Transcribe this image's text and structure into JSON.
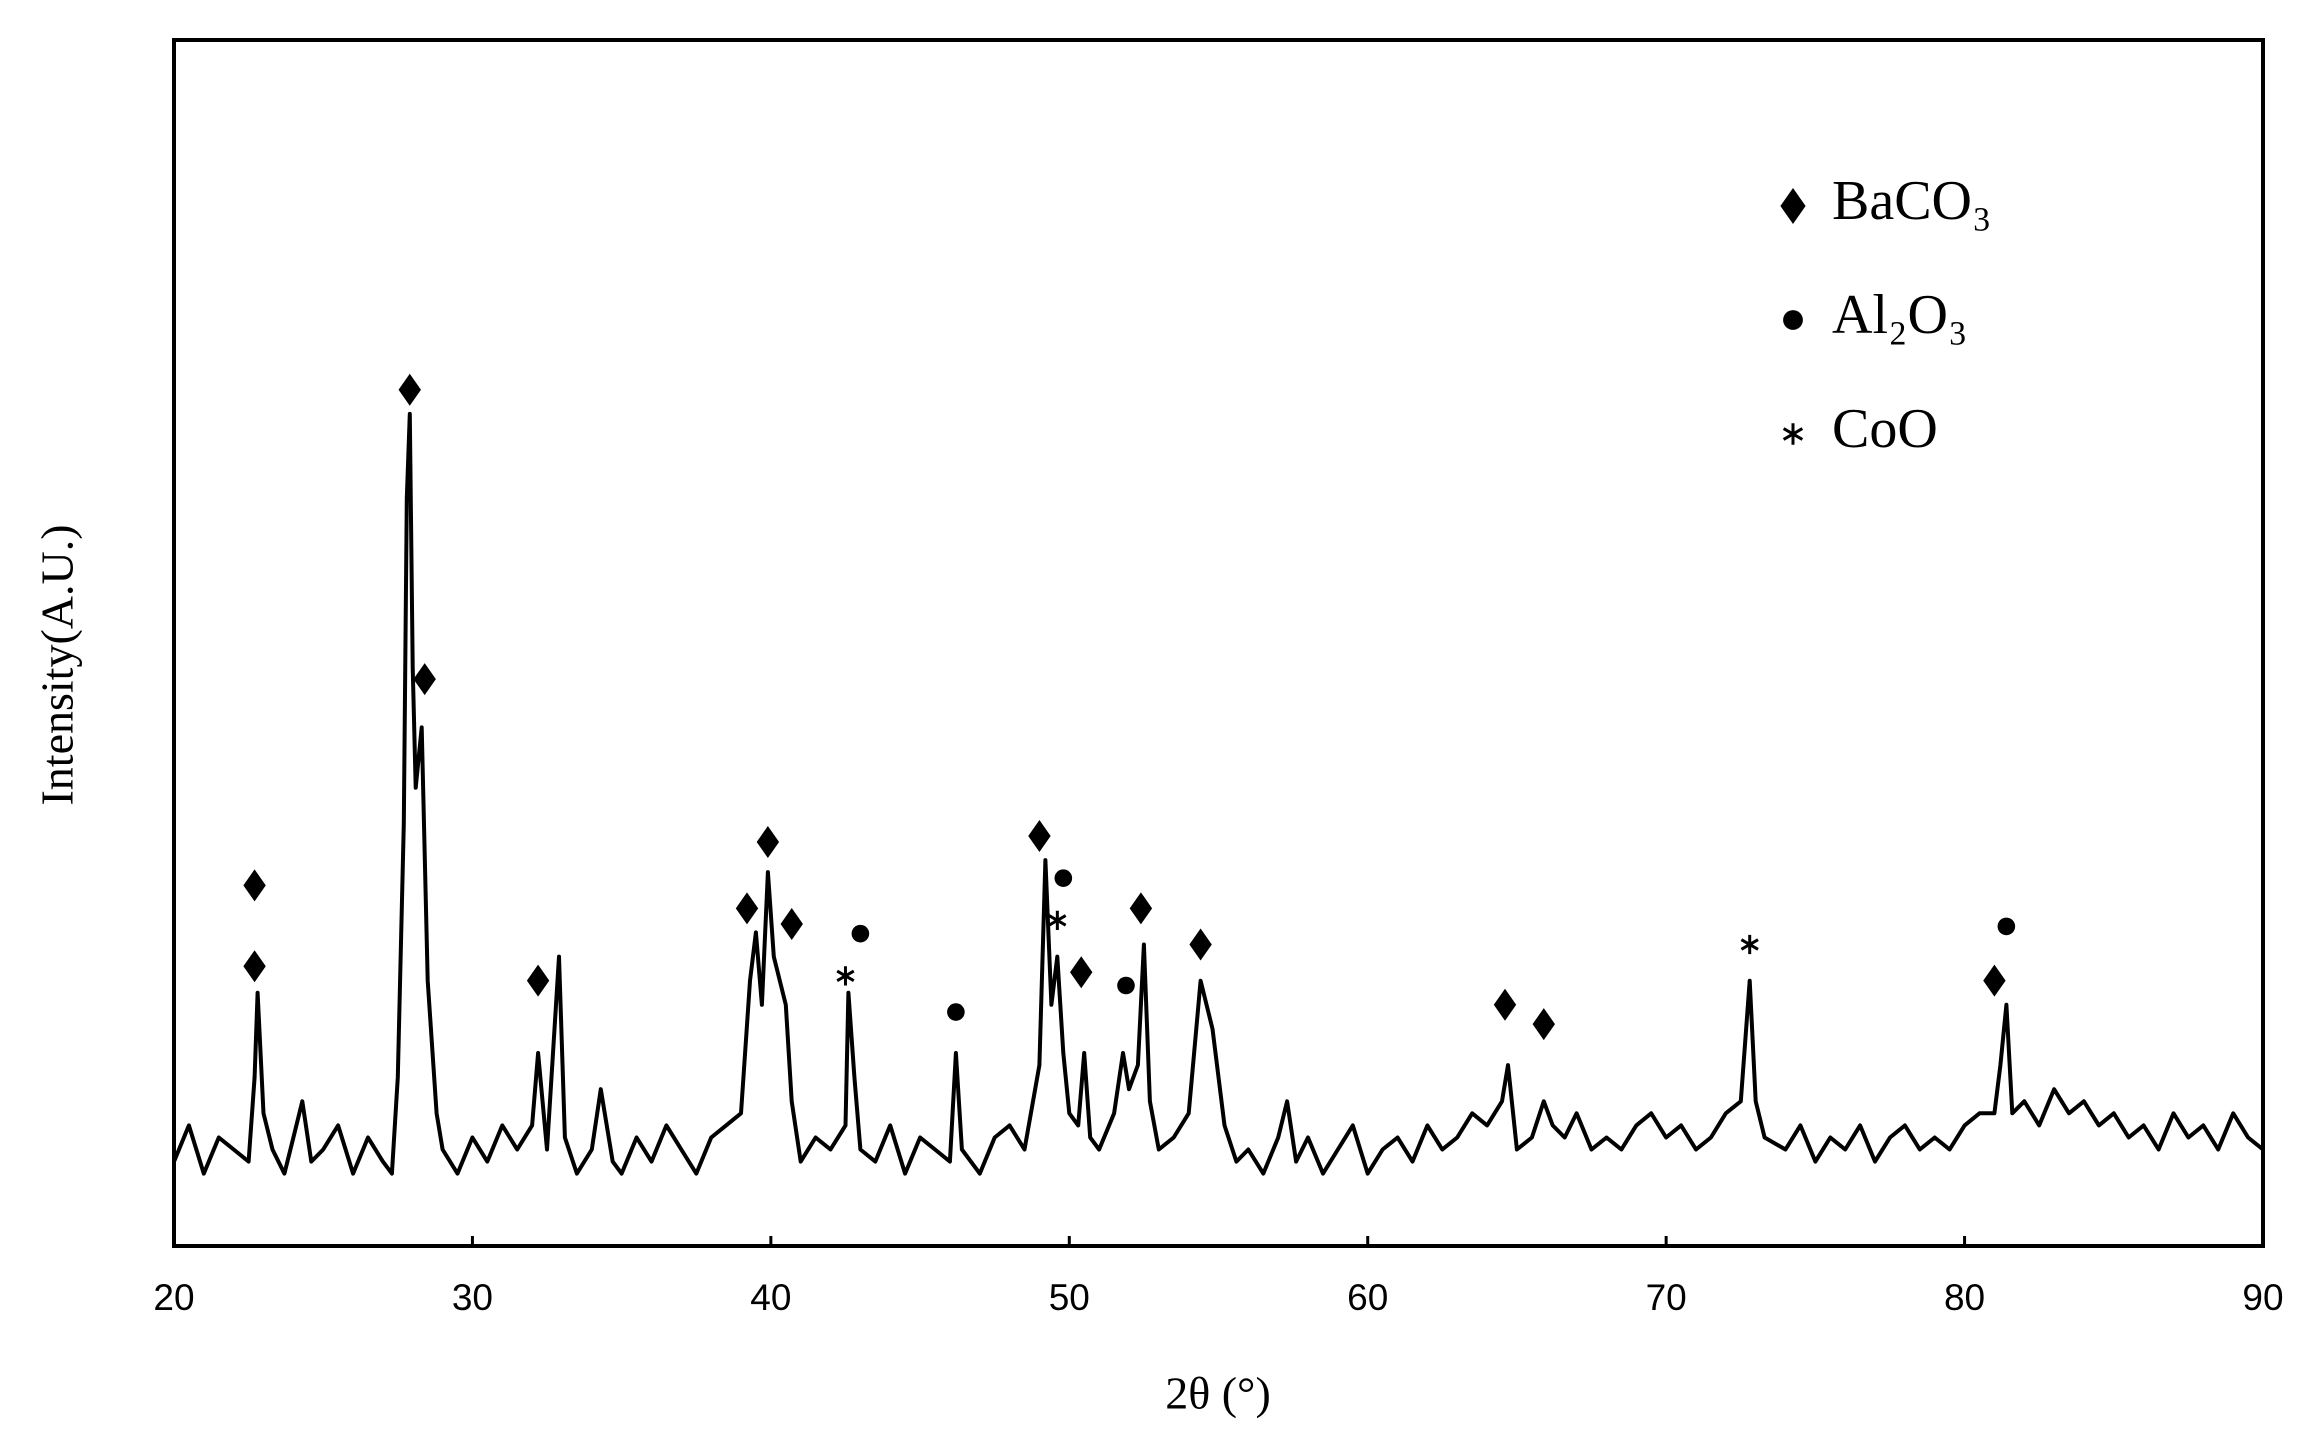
{
  "chart_data": {
    "type": "line",
    "x_label": "2θ (°)",
    "y_label": "Intensity(A.U.)",
    "xlim": [
      20,
      90
    ],
    "xticks": [
      20,
      30,
      40,
      50,
      60,
      70,
      80,
      90
    ],
    "ylim": [
      0,
      100
    ],
    "color": "#000000",
    "x": [
      20,
      20.5,
      21,
      21.5,
      22,
      22.5,
      22.7,
      22.8,
      23,
      23.3,
      23.7,
      24,
      24.3,
      24.6,
      25,
      25.5,
      26,
      26.5,
      27,
      27.3,
      27.5,
      27.7,
      27.8,
      27.9,
      28.0,
      28.1,
      28.3,
      28.5,
      28.8,
      29,
      29.5,
      30,
      30.5,
      31,
      31.5,
      32,
      32.2,
      32.5,
      32.9,
      33.1,
      33.5,
      34,
      34.3,
      34.7,
      35,
      35.5,
      36,
      36.5,
      37,
      37.5,
      38,
      38.5,
      39,
      39.3,
      39.5,
      39.7,
      39.9,
      40.1,
      40.3,
      40.5,
      40.7,
      41,
      41.5,
      42,
      42.5,
      42.6,
      42.8,
      43,
      43.5,
      44,
      44.5,
      45,
      45.5,
      46,
      46.2,
      46.4,
      47,
      47.5,
      48,
      48.5,
      49,
      49.2,
      49.4,
      49.6,
      49.8,
      50,
      50.3,
      50.5,
      50.7,
      51,
      51.5,
      51.8,
      52,
      52.3,
      52.5,
      52.7,
      53,
      53.5,
      54,
      54.4,
      54.8,
      55.2,
      55.6,
      56,
      56.5,
      57,
      57.3,
      57.6,
      58,
      58.5,
      59,
      59.5,
      60,
      60.5,
      61,
      61.5,
      62,
      62.5,
      63,
      63.5,
      64,
      64.5,
      64.7,
      65,
      65.5,
      65.9,
      66.2,
      66.6,
      67,
      67.5,
      68,
      68.5,
      69,
      69.5,
      70,
      70.5,
      71,
      71.5,
      72,
      72.5,
      72.8,
      73,
      73.3,
      74,
      74.5,
      75,
      75.5,
      76,
      76.5,
      77,
      77.5,
      78,
      78.5,
      79,
      79.5,
      80,
      80.5,
      81,
      81.2,
      81.4,
      81.6,
      82,
      82.5,
      83,
      83.5,
      84,
      84.5,
      85,
      85.5,
      86,
      86.5,
      87,
      87.5,
      88,
      88.5,
      89,
      89.5,
      90
    ],
    "values": [
      7,
      10,
      6,
      9,
      8,
      7,
      14,
      21,
      11,
      8,
      6,
      9,
      12,
      7,
      8,
      10,
      6,
      9,
      7,
      6,
      14,
      35,
      62,
      69,
      48,
      38,
      43,
      22,
      11,
      8,
      6,
      9,
      7,
      10,
      8,
      10,
      16,
      8,
      24,
      9,
      6,
      8,
      13,
      7,
      6,
      9,
      7,
      10,
      8,
      6,
      9,
      10,
      11,
      22,
      26,
      20,
      31,
      24,
      22,
      20,
      12,
      7,
      9,
      8,
      10,
      21,
      14,
      8,
      7,
      10,
      6,
      9,
      8,
      7,
      16,
      8,
      6,
      9,
      10,
      8,
      15,
      32,
      20,
      24,
      16,
      11,
      10,
      16,
      9,
      8,
      11,
      16,
      13,
      15,
      25,
      12,
      8,
      9,
      11,
      22,
      18,
      10,
      7,
      8,
      6,
      9,
      12,
      7,
      9,
      6,
      8,
      10,
      6,
      8,
      9,
      7,
      10,
      8,
      9,
      11,
      10,
      12,
      15,
      8,
      9,
      12,
      10,
      9,
      11,
      8,
      9,
      8,
      10,
      11,
      9,
      10,
      8,
      9,
      11,
      12,
      22,
      12,
      9,
      8,
      10,
      7,
      9,
      8,
      10,
      7,
      9,
      10,
      8,
      9,
      8,
      10,
      11,
      11,
      15,
      20,
      11,
      12,
      10,
      13,
      11,
      12,
      10,
      11,
      9,
      10,
      8,
      11,
      9,
      10,
      8,
      11,
      9,
      8
    ],
    "phases": [
      {
        "name": "BaCO₃",
        "marker": "diamond",
        "peaks": {
          "x": [
            22.7,
            22.7,
            27.9,
            28.4,
            32.2,
            39.2,
            39.9,
            40.7,
            49,
            50.4,
            52.4,
            54.4,
            64.6,
            65.9,
            81
          ],
          "y": [
            29.9,
            23.2,
            71,
            47,
            22,
            28,
            33.5,
            26.7,
            34,
            22.7,
            28,
            25,
            20,
            18.4,
            22
          ]
        }
      },
      {
        "name": "Al₂O₃",
        "marker": "circle",
        "peaks": {
          "x": [
            43,
            46.2,
            49.8,
            51.9,
            81.4
          ],
          "y": [
            25.9,
            19.4,
            30.5,
            21.6,
            26.5
          ]
        }
      },
      {
        "name": "CoO",
        "marker": "asterisk",
        "peaks": {
          "x": [
            42.5,
            49.6,
            72.8
          ],
          "y": [
            22.4,
            27,
            25
          ]
        }
      }
    ]
  }
}
